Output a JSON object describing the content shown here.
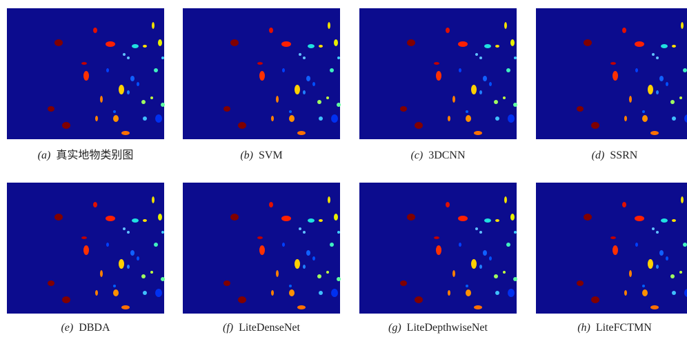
{
  "panels": [
    {
      "tag": "(a)",
      "caption": "真实地物类别图"
    },
    {
      "tag": "(b)",
      "caption": "SVM"
    },
    {
      "tag": "(c)",
      "caption": "3DCNN"
    },
    {
      "tag": "(d)",
      "caption": "SSRN"
    },
    {
      "tag": "(e)",
      "caption": "DBDA"
    },
    {
      "tag": "(f)",
      "caption": "LiteDenseNet"
    },
    {
      "tag": "(g)",
      "caption": "LiteDepthwiseNet"
    },
    {
      "tag": "(h)",
      "caption": "LiteFCTMN"
    }
  ]
}
